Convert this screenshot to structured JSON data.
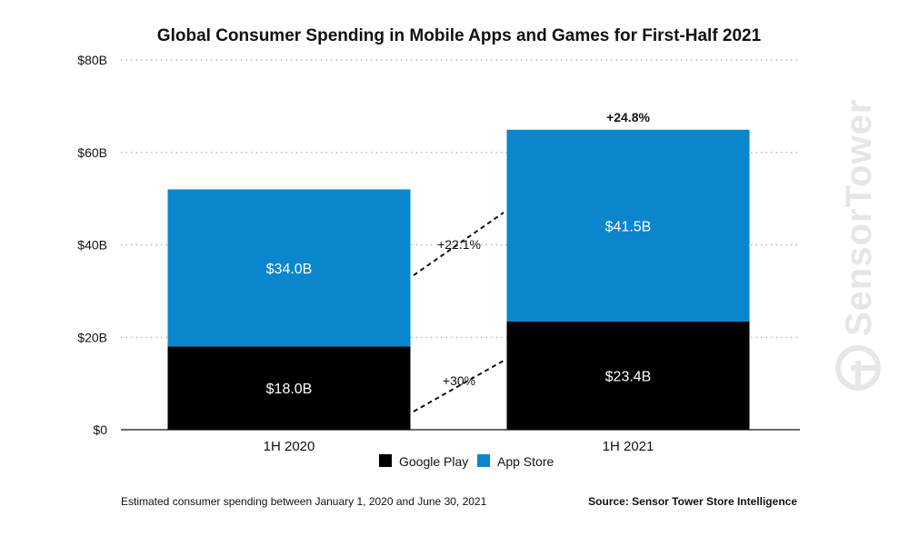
{
  "chart_data": {
    "type": "bar",
    "stacked": true,
    "title": "Global Consumer Spending in Mobile Apps and Games for First-Half 2021",
    "categories": [
      "1H 2020",
      "1H 2021"
    ],
    "series": [
      {
        "name": "Google Play",
        "values": [
          18.0,
          23.4
        ],
        "labels": [
          "$18.0B",
          "$23.4B"
        ],
        "color": "#000000"
      },
      {
        "name": "App Store",
        "values": [
          34.0,
          41.5
        ],
        "labels": [
          "$34.0B",
          "$41.5B"
        ],
        "color": "#0a86cf"
      }
    ],
    "ylim": [
      0,
      80
    ],
    "yticks": [
      0,
      20,
      40,
      60,
      80
    ],
    "ytick_labels": [
      "$0",
      "$20B",
      "$40B",
      "$60B",
      "$80B"
    ],
    "grid": true,
    "legend_position": "bottom",
    "annotations": {
      "growth_google_play": "+30%",
      "growth_app_store": "+22.1%",
      "growth_total": "+24.8%"
    }
  },
  "footer": {
    "note": "Estimated consumer spending between January 1, 2020 and June 30, 2021",
    "source": "Source: Sensor Tower Store Intelligence"
  },
  "watermark": {
    "text": "SensorTower",
    "icon": "sensor-tower-logo-icon"
  }
}
